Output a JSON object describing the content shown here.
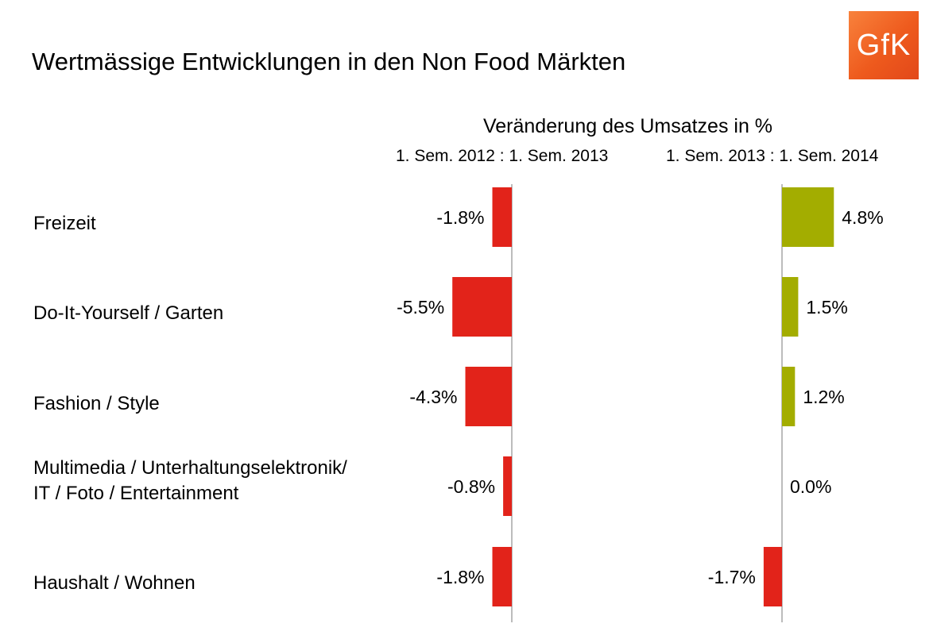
{
  "title": "Wertmässige Entwicklungen in den Non Food Märkten",
  "logo_text": "GfK",
  "chart_data": {
    "type": "bar",
    "orientation": "horizontal",
    "subtitle": "Veränderung des Umsatzes in %",
    "categories": [
      "Freizeit",
      "Do-It-Yourself / Garten",
      "Fashion / Style",
      "Multimedia / Unterhaltungselektronik/\nIT / Foto / Entertainment",
      "Haushalt / Wohnen"
    ],
    "series": [
      {
        "name": "1. Sem. 2012 : 1. Sem. 2013",
        "values": [
          -1.8,
          -5.5,
          -4.3,
          -0.8,
          -1.8
        ],
        "labels": [
          "-1.8%",
          "-5.5%",
          "-4.3%",
          "-0.8%",
          "-1.8%"
        ]
      },
      {
        "name": "1. Sem. 2013 : 1. Sem. 2014",
        "values": [
          4.8,
          1.5,
          1.2,
          0.0,
          -1.7
        ],
        "labels": [
          "4.8%",
          "1.5%",
          "1.2%",
          "0.0%",
          "-1.7%"
        ]
      }
    ],
    "colors": {
      "negative": "#e2231a",
      "positive": "#a3ad00",
      "axis": "#a6a6a6"
    }
  }
}
